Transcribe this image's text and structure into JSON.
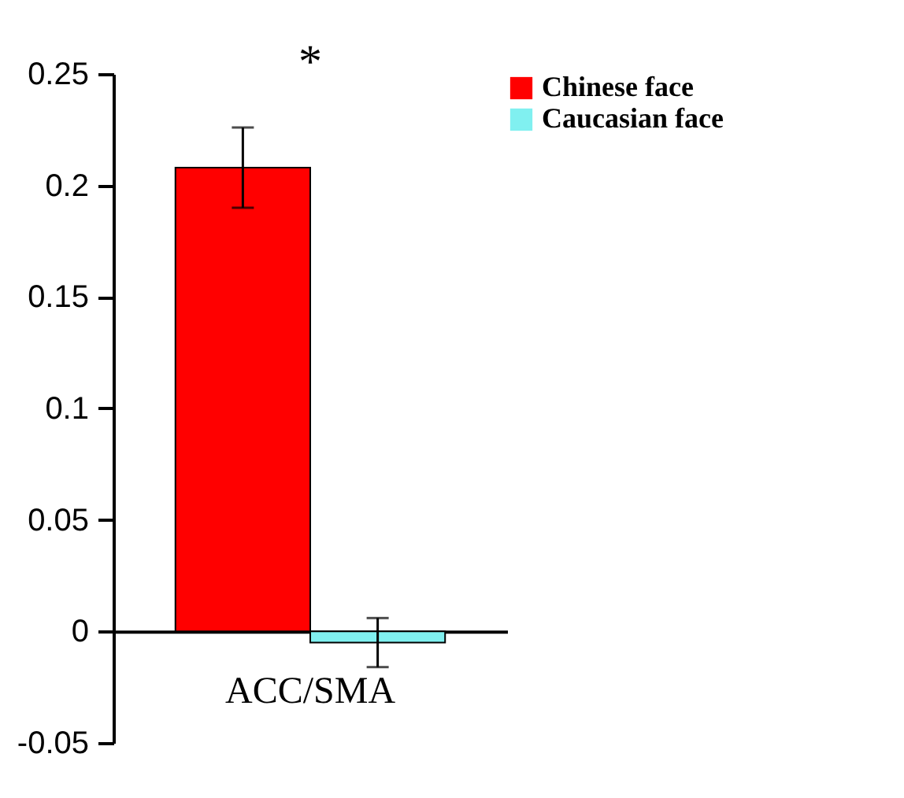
{
  "chart_data": {
    "type": "bar",
    "categories": [
      "ACC/SMA"
    ],
    "series": [
      {
        "name": "Chinese face",
        "color": "#ff0000",
        "values": [
          0.208
        ],
        "errors": [
          0.018
        ]
      },
      {
        "name": "Caucasian face",
        "color": "#80f0f0",
        "values": [
          -0.005
        ],
        "errors": [
          0.011
        ]
      }
    ],
    "ylim": [
      -0.05,
      0.25
    ],
    "yticks": [
      {
        "value": -0.05,
        "label": "-0.05"
      },
      0,
      {
        "value": 0.05,
        "label": "0.05"
      },
      0.1,
      0.15,
      0.2,
      0.25
    ],
    "annotations": [
      "*"
    ],
    "legend": "top right",
    "grid": false
  }
}
